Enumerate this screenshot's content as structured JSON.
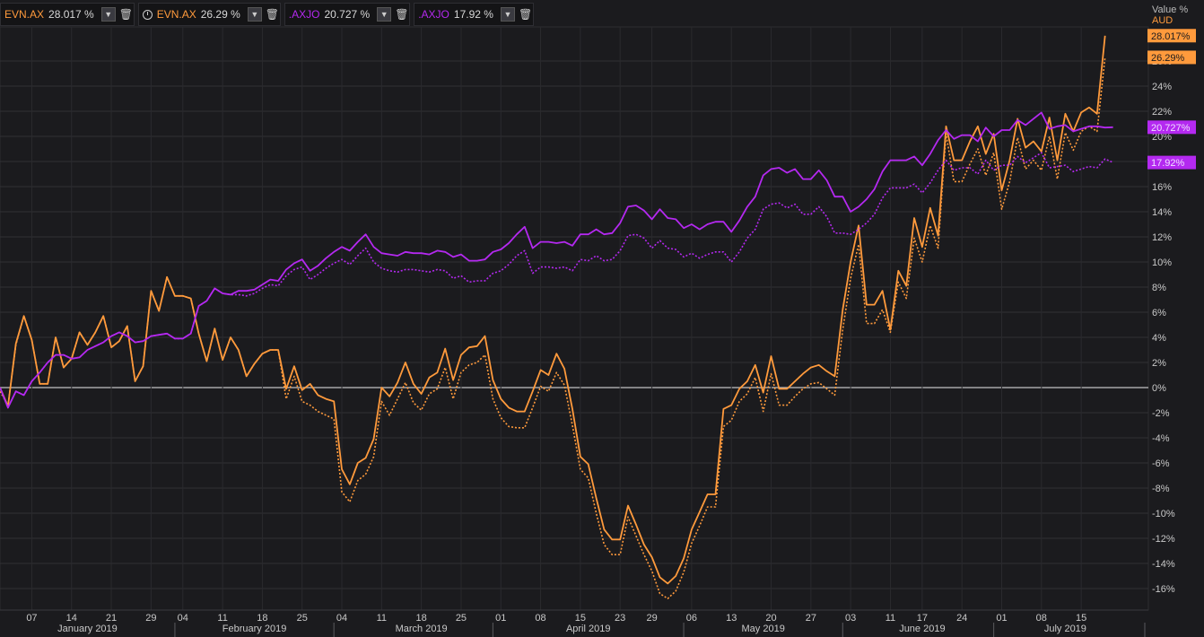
{
  "legend": [
    {
      "symbol": "EVN.AX",
      "value": "28.017 %",
      "color": "#ff9a3c",
      "clock": false
    },
    {
      "symbol": "EVN.AX",
      "value": "26.29 %",
      "color": "#ff9a3c",
      "clock": true
    },
    {
      "symbol": ".AXJO",
      "value": "20.727 %",
      "color": "#b429f0",
      "clock": false
    },
    {
      "symbol": ".AXJO",
      "value": "17.92 %",
      "color": "#b429f0",
      "clock": false
    }
  ],
  "axis_title": {
    "label": "Value %",
    "unit": "AUD"
  },
  "chart_data": {
    "type": "line",
    "ylim": [
      -17.5,
      30
    ],
    "y_ticks": [
      -16,
      -14,
      -12,
      -10,
      -8,
      -6,
      -4,
      -2,
      0,
      2,
      4,
      6,
      8,
      10,
      12,
      14,
      16,
      18,
      20,
      22,
      24,
      26
    ],
    "y_tick_labels": [
      "-16%",
      "-14%",
      "-12%",
      "-10%",
      "-8%",
      "-6%",
      "-4%",
      "-2%",
      "0%",
      "2%",
      "4%",
      "6%",
      "8%",
      "10%",
      "12%",
      "14%",
      "16%",
      "18%",
      "20%",
      "22%",
      "24%",
      "26%"
    ],
    "x_range": [
      0,
      144
    ],
    "x_ticks": [
      {
        "label": "07",
        "x": 4
      },
      {
        "label": "14",
        "x": 9
      },
      {
        "label": "21",
        "x": 14
      },
      {
        "label": "29",
        "x": 19
      },
      {
        "label": "04",
        "x": 23
      },
      {
        "label": "11",
        "x": 28
      },
      {
        "label": "18",
        "x": 33
      },
      {
        "label": "25",
        "x": 38
      },
      {
        "label": "04",
        "x": 43
      },
      {
        "label": "11",
        "x": 48
      },
      {
        "label": "18",
        "x": 53
      },
      {
        "label": "25",
        "x": 58
      },
      {
        "label": "01",
        "x": 63
      },
      {
        "label": "08",
        "x": 68
      },
      {
        "label": "15",
        "x": 73
      },
      {
        "label": "23",
        "x": 78
      },
      {
        "label": "29",
        "x": 82
      },
      {
        "label": "06",
        "x": 87
      },
      {
        "label": "13",
        "x": 92
      },
      {
        "label": "20",
        "x": 97
      },
      {
        "label": "27",
        "x": 102
      },
      {
        "label": "03",
        "x": 107
      },
      {
        "label": "11",
        "x": 112
      },
      {
        "label": "17",
        "x": 116
      },
      {
        "label": "24",
        "x": 121
      },
      {
        "label": "01",
        "x": 126
      },
      {
        "label": "08",
        "x": 131
      },
      {
        "label": "15",
        "x": 136
      }
    ],
    "months": [
      {
        "label": "January 2019",
        "center": 11,
        "sep": 22
      },
      {
        "label": "February 2019",
        "center": 32,
        "sep": 42
      },
      {
        "label": "March 2019",
        "center": 53,
        "sep": 62
      },
      {
        "label": "April 2019",
        "center": 74,
        "sep": 86
      },
      {
        "label": "May 2019",
        "center": 96,
        "sep": 106
      },
      {
        "label": "June 2019",
        "center": 116,
        "sep": 125
      },
      {
        "label": "July 2019",
        "center": 134,
        "sep": 144
      }
    ],
    "last_value_labels": [
      {
        "text": "28.017%",
        "value": 28.017,
        "color": "#ff9a3c"
      },
      {
        "text": "26.29%",
        "value": 26.29,
        "color": "#ff9a3c"
      },
      {
        "text": "20.727%",
        "value": 20.727,
        "color": "#b429f0"
      },
      {
        "text": "17.92%",
        "value": 17.92,
        "color": "#b429f0"
      }
    ],
    "series": [
      {
        "color": "#ff9a3c",
        "dash": false,
        "values": [
          0,
          -1.5,
          3.5,
          5.7,
          3.8,
          0.3,
          0.3,
          4,
          1.6,
          2.3,
          4.4,
          3.4,
          4.4,
          5.7,
          3.2,
          3.7,
          4.9,
          0.5,
          1.7,
          7.7,
          6.1,
          8.8,
          7.3,
          7.3,
          7.1,
          4.3,
          2.1,
          4.7,
          2.2,
          4,
          3,
          0.9,
          1.9,
          2.7,
          3,
          3,
          -0.1,
          1.7,
          -0.2,
          0.3,
          -0.6,
          -0.9,
          -1.1,
          -6.5,
          -7.7,
          -6,
          -5.6,
          -4.1,
          0,
          -0.7,
          0.4,
          2,
          0.3,
          -0.5,
          0.8,
          1.2,
          3.1,
          0.6,
          2.6,
          3.2,
          3.3,
          4.1,
          0.6,
          -0.9,
          -1.6,
          -1.9,
          -1.9,
          -0.3,
          1.4,
          1,
          2.7,
          1.5,
          -1.7,
          -5.5,
          -6.1,
          -8.8,
          -11.3,
          -12.1,
          -12.1,
          -9.4,
          -10.9,
          -12.5,
          -13.5,
          -15.1,
          -15.6,
          -15,
          -13.6,
          -11.3,
          -9.9,
          -8.5,
          -8.5,
          -1.7,
          -1.4,
          -0.1,
          0.5,
          1.8,
          -0.4,
          2.5,
          -0.1,
          -0.1,
          0.5,
          1.1,
          1.6,
          1.8,
          1.3,
          0.9,
          6.2,
          10,
          12.9,
          6.6,
          6.6,
          7.7,
          4.6,
          9.3,
          8.1,
          13.5,
          11.2,
          14.3,
          12.1,
          20.8,
          18.1,
          18.1,
          19.6,
          20.8,
          18.6,
          20.2,
          15.7,
          18.1,
          21.4,
          19.1,
          19.6,
          18.8,
          21.5,
          18.1,
          21.8,
          20.4,
          21.9,
          22.3,
          21.8,
          28.017
        ]
      },
      {
        "color": "#ff9a3c",
        "dash": true,
        "values": [
          -0.3,
          -1.4,
          3.4,
          5.7,
          3.8,
          0.3,
          0.3,
          4,
          1.6,
          2.3,
          4.4,
          3.4,
          4.4,
          5.7,
          3.2,
          3.7,
          4.9,
          0.5,
          1.7,
          7.7,
          6.1,
          8.8,
          7.3,
          7.3,
          7.1,
          4.3,
          2.1,
          4.7,
          2.2,
          4,
          3,
          0.9,
          1.9,
          2.7,
          3,
          3,
          -0.9,
          0.9,
          -1.1,
          -1.4,
          -1.9,
          -2.2,
          -2.5,
          -8.3,
          -9.1,
          -7.4,
          -6.9,
          -5.5,
          -1.1,
          -2.2,
          -0.9,
          0.4,
          -1.2,
          -1.8,
          -0.5,
          -0.1,
          1.6,
          -0.9,
          1.2,
          1.8,
          2,
          2.6,
          -0.9,
          -2.4,
          -3.1,
          -3.2,
          -3.2,
          -1.6,
          0.1,
          -0.3,
          1.2,
          0.2,
          -3,
          -6.5,
          -7.2,
          -10,
          -12.5,
          -13.3,
          -13.3,
          -10.3,
          -11.8,
          -13.3,
          -14.6,
          -16.4,
          -16.8,
          -16.2,
          -14.7,
          -12.4,
          -11,
          -9.5,
          -9.5,
          -3.1,
          -2.6,
          -1.1,
          -0.5,
          0.8,
          -1.9,
          1.1,
          -1.4,
          -1.4,
          -0.7,
          -0.1,
          0.3,
          0.4,
          -0.1,
          -0.6,
          4.6,
          8.7,
          11.4,
          5.1,
          5.1,
          6.2,
          4.4,
          8.4,
          7.1,
          11.9,
          10,
          12.9,
          11.1,
          20.2,
          16.4,
          16.4,
          17.8,
          19,
          16.9,
          18.7,
          14.2,
          16.4,
          19.9,
          17.4,
          18.1,
          17.3,
          20,
          16.6,
          20.3,
          18.9,
          20.4,
          20.8,
          20.4,
          26.29
        ]
      },
      {
        "color": "#b429f0",
        "dash": false,
        "values": [
          0,
          -1.6,
          -0.3,
          -0.6,
          0.5,
          1.2,
          2,
          2.6,
          2.6,
          2.3,
          2.4,
          3,
          3.3,
          3.6,
          4.1,
          4.4,
          4.1,
          3.6,
          3.7,
          4.1,
          4.2,
          4.3,
          3.9,
          3.9,
          4.3,
          6.5,
          6.9,
          7.9,
          7.5,
          7.4,
          7.7,
          7.7,
          7.8,
          8.2,
          8.6,
          8.5,
          9.4,
          9.9,
          10.2,
          9.3,
          9.7,
          10.3,
          10.8,
          11.2,
          10.9,
          11.6,
          12.2,
          11.2,
          10.7,
          10.6,
          10.5,
          10.8,
          10.7,
          10.7,
          10.6,
          10.9,
          10.8,
          10.4,
          10.6,
          10.1,
          10.1,
          10.2,
          10.8,
          11,
          11.5,
          12.2,
          12.8,
          11.1,
          11.6,
          11.6,
          11.5,
          11.6,
          11.3,
          12.2,
          12.2,
          12.6,
          12.2,
          12.3,
          13.1,
          14.4,
          14.5,
          14.1,
          13.4,
          14.2,
          13.5,
          13.4,
          12.7,
          13,
          12.6,
          13,
          13.2,
          13.2,
          12.4,
          13.3,
          14.4,
          15.2,
          16.9,
          17.4,
          17.5,
          17.1,
          17.4,
          16.6,
          16.6,
          17.3,
          16.5,
          15.2,
          15.2,
          14,
          14.4,
          15,
          15.8,
          17.2,
          18.1,
          18.1,
          18.1,
          18.4,
          17.7,
          18.6,
          19.7,
          20.5,
          19.8,
          20.1,
          20.1,
          19.6,
          20.7,
          20,
          20.5,
          20.5,
          21.3,
          20.9,
          21.4,
          21.9,
          20.6,
          20.8,
          20.9,
          20.4,
          20.6,
          20.8,
          20.8,
          20.7,
          20.727
        ]
      },
      {
        "color": "#b429f0",
        "dash": true,
        "values": [
          0,
          -1.6,
          -0.3,
          -0.6,
          0.5,
          1.2,
          2,
          2.6,
          2.6,
          2.3,
          2.4,
          3,
          3.3,
          3.6,
          4.1,
          4.4,
          4.1,
          3.6,
          3.7,
          4.1,
          4.2,
          4.3,
          3.9,
          3.9,
          4.3,
          6.5,
          6.9,
          7.9,
          7.5,
          7.4,
          7.4,
          7.3,
          7.5,
          7.9,
          8.2,
          8.1,
          8.9,
          9.4,
          9.6,
          8.6,
          9,
          9.5,
          9.9,
          10.2,
          9.8,
          10.5,
          11.1,
          10,
          9.5,
          9.3,
          9.2,
          9.4,
          9.4,
          9.3,
          9.2,
          9.4,
          9.3,
          8.7,
          8.9,
          8.4,
          8.5,
          8.5,
          9.1,
          9.3,
          9.8,
          10.5,
          10.9,
          9.1,
          9.6,
          9.6,
          9.5,
          9.6,
          9.3,
          10.2,
          10.1,
          10.5,
          10.1,
          10.2,
          10.9,
          12.1,
          12.2,
          11.9,
          11.1,
          11.7,
          11.1,
          11,
          10.4,
          10.7,
          10.3,
          10.6,
          10.8,
          10.8,
          10,
          10.8,
          11.9,
          12.6,
          14.2,
          14.6,
          14.7,
          14.3,
          14.6,
          13.8,
          13.8,
          14.4,
          13.6,
          12.3,
          12.3,
          12.2,
          12.6,
          13.1,
          13.8,
          15.1,
          15.9,
          15.9,
          15.9,
          16.2,
          15.5,
          16.3,
          17.3,
          18.1,
          17.3,
          17.5,
          17.5,
          17,
          18.1,
          17.3,
          17.7,
          17.7,
          18.4,
          17.9,
          18.3,
          18.7,
          17.5,
          17.6,
          17.7,
          17.2,
          17.4,
          17.6,
          17.5,
          18.2,
          17.92
        ]
      }
    ]
  }
}
